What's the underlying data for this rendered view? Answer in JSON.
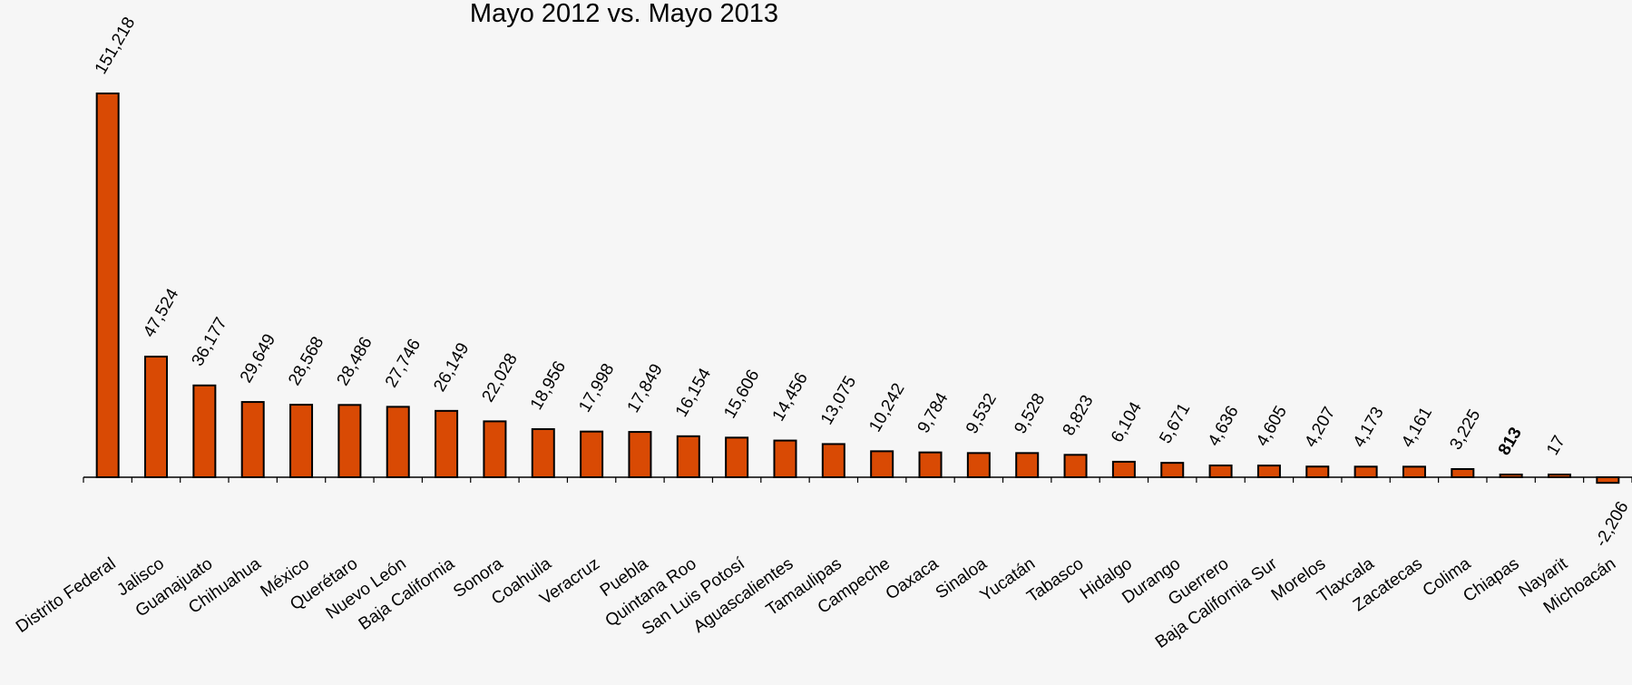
{
  "chart_data": {
    "type": "bar",
    "title": "Mayo 2012  vs. Mayo 2013",
    "xlabel": "",
    "ylabel": "",
    "ylim": [
      -2206,
      151218
    ],
    "grid": false,
    "legend": "none",
    "bar_color": "#d94a04",
    "categories": [
      "Distrito Federal",
      "Jalisco",
      "Guanajuato",
      "Chihuahua",
      "México",
      "Querétaro",
      "Nuevo León",
      "Baja California",
      "Sonora",
      "Coahuila",
      "Veracruz",
      "Puebla",
      "Quintana Roo",
      "San Luis Potosí",
      "Aguascalientes",
      "Tamaulipas",
      "Campeche",
      "Oaxaca",
      "Sinaloa",
      "Yucatán",
      "Tabasco",
      "Hidalgo",
      "Durango",
      "Guerrero",
      "Baja California Sur",
      "Morelos",
      "Tlaxcala",
      "Zacatecas",
      "Colima",
      "Chiapas",
      "Nayarit",
      "Michoacán"
    ],
    "values": [
      151218,
      47524,
      36177,
      29649,
      28568,
      28486,
      27746,
      26149,
      22028,
      18956,
      17998,
      17849,
      16154,
      15606,
      14456,
      13075,
      10242,
      9784,
      9532,
      9528,
      8823,
      6104,
      5671,
      4636,
      4605,
      4207,
      4173,
      4161,
      3225,
      813,
      17,
      -2206
    ],
    "data_labels": [
      "151,218",
      "47,524",
      "36,177",
      "29,649",
      "28,568",
      "28,486",
      "27,746",
      "26,149",
      "22,028",
      "18,956",
      "17,998",
      "17,849",
      "16,154",
      "15,606",
      "14,456",
      "13,075",
      "10,242",
      "9,784",
      "9,532",
      "9,528",
      "8,823",
      "6,104",
      "5,671",
      "4,636",
      "4,605",
      "4,207",
      "4,173",
      "4,161",
      "3,225",
      "813",
      "17",
      "-2,206"
    ],
    "bold_labels": [
      "813"
    ]
  }
}
